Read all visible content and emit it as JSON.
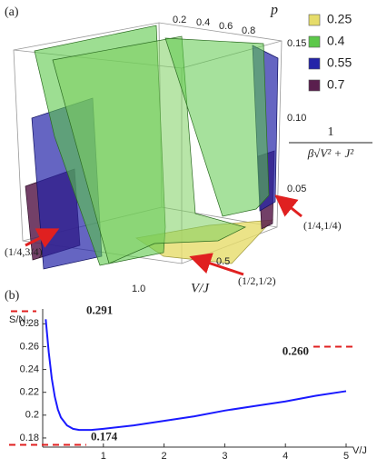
{
  "panel_a": {
    "label": "(a)",
    "p_axis": {
      "label": "p",
      "ticks": [
        "0.2",
        "0.4",
        "0.6",
        "0.8"
      ]
    },
    "z_axis": {
      "numerator": "1",
      "denominator": "β√V² + J²",
      "ticks": [
        "0.15",
        "0.10",
        "0.05"
      ]
    },
    "vj_axis": {
      "label": "V/J",
      "ticks": [
        "0.5",
        "1.0"
      ]
    },
    "legend": [
      {
        "label": "0.25",
        "color": "#e6dc6a"
      },
      {
        "label": "0.4",
        "color": "#5cc84a"
      },
      {
        "label": "0.55",
        "color": "#2424a8"
      },
      {
        "label": "0.7",
        "color": "#5a1f4e"
      }
    ],
    "annotations": [
      "(1/4,3/4)",
      "(1/2,1/2)",
      "(1/4,1/4)"
    ]
  },
  "chart_data": {
    "type": "line",
    "label": "(b)",
    "y_label": "S/N₁",
    "x_label": "V/J",
    "x": [
      0.05,
      0.1,
      0.15,
      0.2,
      0.25,
      0.3,
      0.4,
      0.5,
      0.6,
      0.8,
      1.0,
      1.5,
      2,
      2.5,
      3,
      3.5,
      4,
      4.5,
      5
    ],
    "series": [
      {
        "color": "#1a1aff",
        "values": [
          0.284,
          0.255,
          0.232,
          0.216,
          0.205,
          0.198,
          0.191,
          0.188,
          0.187,
          0.187,
          0.188,
          0.191,
          0.195,
          0.199,
          0.204,
          0.208,
          0.212,
          0.217,
          0.221
        ]
      }
    ],
    "xlim": [
      0,
      5
    ],
    "ylim": [
      0.172,
      0.293
    ],
    "xticks": [
      1,
      2,
      3,
      4,
      5
    ],
    "yticks": [
      0.18,
      0.2,
      0.22,
      0.24,
      0.26,
      0.28
    ],
    "reference_lines": [
      {
        "value": 0.291,
        "label": "0.291"
      },
      {
        "value": 0.26,
        "label": "0.260"
      },
      {
        "value": 0.174,
        "label": "0.174"
      }
    ],
    "reference_color": "#e02020"
  }
}
